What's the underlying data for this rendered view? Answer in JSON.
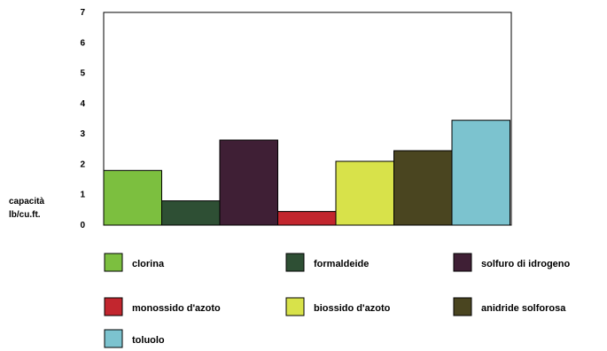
{
  "chart_data": {
    "type": "bar",
    "categories": [
      "clorina",
      "formaldeide",
      "solfuro di idrogeno",
      "monossido d'azoto",
      "biossido d'azoto",
      "anidride solforosa",
      "toluolo"
    ],
    "values": [
      1.8,
      0.8,
      2.8,
      0.45,
      2.1,
      2.45,
      3.45
    ],
    "colors": [
      "#7cbf3f",
      "#2e4f34",
      "#3f1f35",
      "#c2262e",
      "#d8e24a",
      "#4a4520",
      "#7cc3cf"
    ],
    "ylabel_lines": [
      "capacità",
      "lb/cu.ft."
    ],
    "ylim": [
      0,
      7
    ],
    "yticks": [
      "0",
      "1",
      "2",
      "3",
      "4",
      "5",
      "6",
      "7"
    ],
    "grid": false,
    "legend_position": "bottom"
  }
}
